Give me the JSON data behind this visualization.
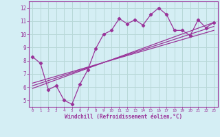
{
  "title": "",
  "xlabel": "Windchill (Refroidissement éolien,°C)",
  "bg_color": "#d4eef4",
  "line_color": "#993399",
  "grid_color": "#b8d8d8",
  "axis_color": "#666666",
  "xlim": [
    -0.5,
    23.5
  ],
  "ylim": [
    4.5,
    12.5
  ],
  "xticks": [
    0,
    1,
    2,
    3,
    4,
    5,
    6,
    7,
    8,
    9,
    10,
    11,
    12,
    13,
    14,
    15,
    16,
    17,
    18,
    19,
    20,
    21,
    22,
    23
  ],
  "yticks": [
    5,
    6,
    7,
    8,
    9,
    10,
    11,
    12
  ],
  "data_x": [
    0,
    1,
    2,
    3,
    4,
    5,
    6,
    7,
    8,
    9,
    10,
    11,
    12,
    13,
    14,
    15,
    16,
    17,
    18,
    19,
    20,
    21,
    22,
    23
  ],
  "data_y": [
    8.3,
    7.8,
    5.8,
    6.1,
    5.0,
    4.7,
    6.2,
    7.3,
    8.9,
    10.0,
    10.3,
    11.2,
    10.8,
    11.1,
    10.7,
    11.5,
    12.0,
    11.5,
    10.3,
    10.3,
    9.9,
    11.1,
    10.5,
    10.9
  ],
  "trend1_x": [
    0,
    23
  ],
  "trend1_y": [
    6.3,
    10.3
  ],
  "trend2_x": [
    0,
    23
  ],
  "trend2_y": [
    6.1,
    10.6
  ],
  "trend3_x": [
    0,
    23
  ],
  "trend3_y": [
    5.9,
    10.9
  ]
}
